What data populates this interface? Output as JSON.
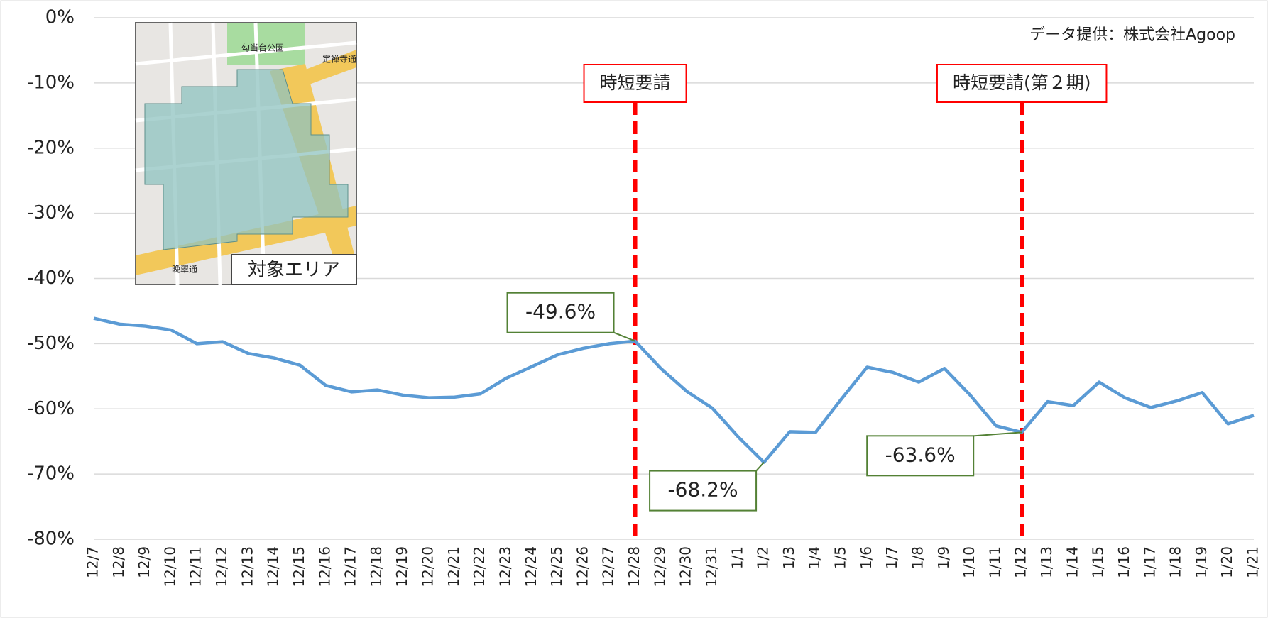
{
  "chart_data": {
    "type": "line",
    "source_note": "データ提供：株式会社Agoop",
    "categories": [
      "12/7",
      "12/8",
      "12/9",
      "12/10",
      "12/11",
      "12/12",
      "12/13",
      "12/14",
      "12/15",
      "12/16",
      "12/17",
      "12/18",
      "12/19",
      "12/20",
      "12/21",
      "12/22",
      "12/23",
      "12/24",
      "12/25",
      "12/26",
      "12/27",
      "12/28",
      "12/29",
      "12/30",
      "12/31",
      "1/1",
      "1/2",
      "1/3",
      "1/4",
      "1/5",
      "1/6",
      "1/7",
      "1/8",
      "1/9",
      "1/10",
      "1/11",
      "1/12",
      "1/13",
      "1/14",
      "1/15",
      "1/16",
      "1/17",
      "1/18",
      "1/19",
      "1/20",
      "1/21"
    ],
    "values": [
      -46.1,
      -47.0,
      -47.3,
      -47.9,
      -50.0,
      -49.7,
      -51.5,
      -52.2,
      -53.3,
      -56.4,
      -57.4,
      -57.1,
      -57.9,
      -58.3,
      -58.2,
      -57.7,
      -55.3,
      -53.5,
      -51.7,
      -50.7,
      -50.0,
      -49.6,
      -53.8,
      -57.3,
      -59.9,
      -64.3,
      -68.2,
      -63.5,
      -63.6,
      -58.5,
      -53.6,
      -54.4,
      -55.9,
      -53.8,
      -57.9,
      -62.6,
      -63.6,
      -58.9,
      -59.5,
      -55.9,
      -58.3,
      -59.8,
      -58.8,
      -57.5,
      -62.3,
      -61.0
    ],
    "value_labels": [
      null,
      null,
      null,
      null,
      null,
      null,
      null,
      null,
      null,
      null,
      null,
      null,
      null,
      null,
      null,
      null,
      null,
      null,
      null,
      null,
      null,
      "-49.6%",
      null,
      null,
      null,
      null,
      "-68.2%",
      null,
      null,
      null,
      null,
      null,
      null,
      null,
      null,
      null,
      "-63.6%",
      null,
      null,
      null,
      null,
      null,
      null,
      null,
      null,
      null
    ],
    "color": "#5b9bd5",
    "ylim": [
      -80,
      0
    ],
    "yticks": [
      {
        "value": 0,
        "label": "0%"
      },
      {
        "value": -10,
        "label": "-10%"
      },
      {
        "value": -20,
        "label": "-20%"
      },
      {
        "value": -30,
        "label": "-30%"
      },
      {
        "value": -40,
        "label": "-40%"
      },
      {
        "value": -50,
        "label": "-50%"
      },
      {
        "value": -60,
        "label": "-60%"
      },
      {
        "value": -70,
        "label": "-70%"
      },
      {
        "value": -80,
        "label": "-80%"
      }
    ],
    "grid": true,
    "events": [
      {
        "label": "時短要請",
        "x": "12/28",
        "color": "#ff0000"
      },
      {
        "label": "時短要請(第２期)",
        "x": "1/12",
        "color": "#ff0000"
      }
    ],
    "inset": {
      "label": "対象エリア",
      "map_labels": [
        "勾当台公園",
        "定禅寺通",
        "晩翠通"
      ]
    }
  }
}
